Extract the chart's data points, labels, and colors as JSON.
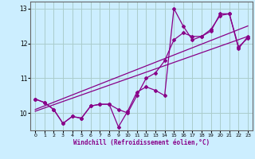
{
  "xlabel": "Windchill (Refroidissement éolien,°C)",
  "bg_color": "#cceeff",
  "grid_color": "#aacccc",
  "line_color": "#880088",
  "xlim": [
    -0.5,
    23.5
  ],
  "ylim": [
    9.5,
    13.2
  ],
  "yticks": [
    10,
    11,
    12,
    13
  ],
  "xticks": [
    0,
    1,
    2,
    3,
    4,
    5,
    6,
    7,
    8,
    9,
    10,
    11,
    12,
    13,
    14,
    15,
    16,
    17,
    18,
    19,
    20,
    21,
    22,
    23
  ],
  "series1_x": [
    0,
    1,
    2,
    3,
    4,
    5,
    6,
    7,
    8,
    9,
    10,
    11,
    12,
    13,
    14,
    15,
    16,
    17,
    18,
    19,
    20,
    21,
    22,
    23
  ],
  "series1_y": [
    10.4,
    10.3,
    10.1,
    9.7,
    9.9,
    9.85,
    10.2,
    10.25,
    10.25,
    10.1,
    10.0,
    10.5,
    11.0,
    11.15,
    11.5,
    12.1,
    12.3,
    12.2,
    12.2,
    12.35,
    12.85,
    12.85,
    11.85,
    12.2
  ],
  "series2_x": [
    0,
    1,
    2,
    3,
    4,
    5,
    6,
    7,
    8,
    9,
    10,
    11,
    12,
    13,
    14,
    15,
    16,
    17,
    18,
    19,
    20,
    21,
    22,
    23
  ],
  "series2_y": [
    10.4,
    10.3,
    10.1,
    9.7,
    9.9,
    9.85,
    10.2,
    10.25,
    10.25,
    9.6,
    10.05,
    10.6,
    10.75,
    10.65,
    10.5,
    13.0,
    12.5,
    12.1,
    12.2,
    12.4,
    12.8,
    12.85,
    11.9,
    12.15
  ],
  "trend1_x": [
    0,
    23
  ],
  "trend1_y": [
    10.1,
    12.5
  ],
  "trend2_x": [
    0,
    23
  ],
  "trend2_y": [
    10.05,
    12.2
  ]
}
